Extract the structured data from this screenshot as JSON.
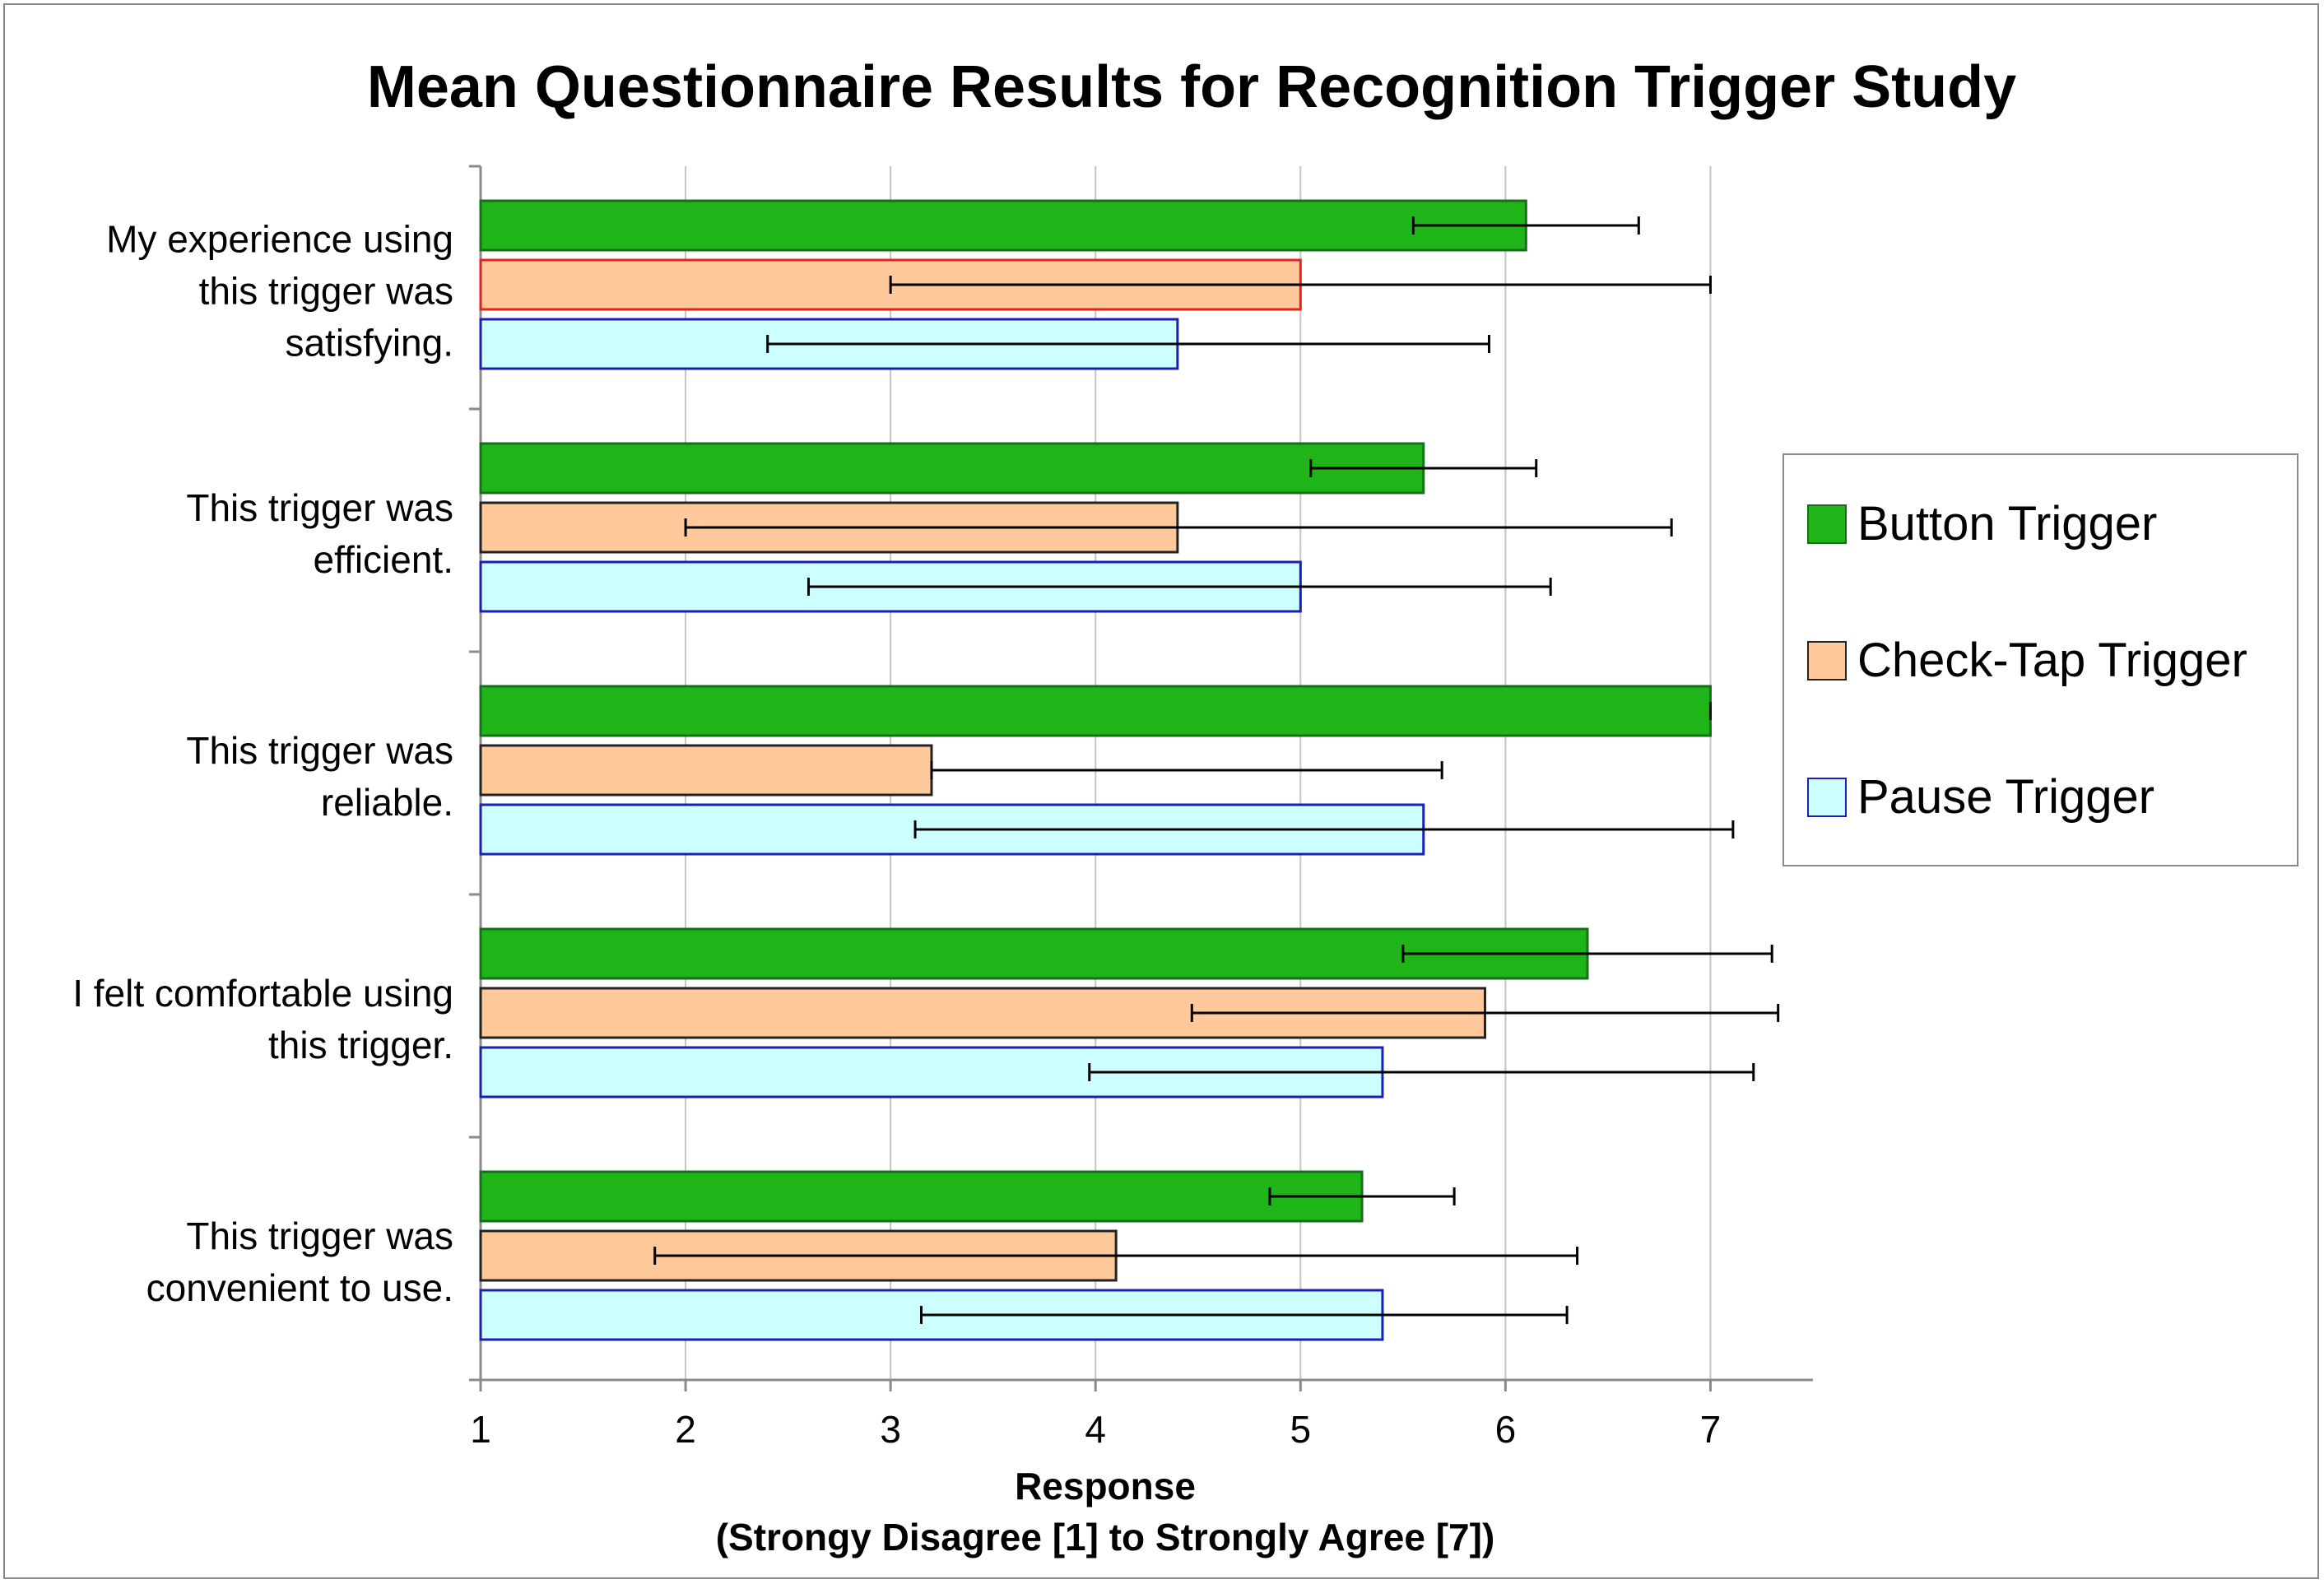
{
  "chart_data": {
    "type": "bar",
    "orientation": "horizontal",
    "title": "Mean Questionnaire Results for Recognition Trigger Study",
    "xlabel": "Response",
    "xlabel_sub": "(Strongy Disagree [1] to Strongly Agree [7])",
    "ylabel": "",
    "xlim": [
      1,
      7.5
    ],
    "xticks": [
      1,
      2,
      3,
      4,
      5,
      6,
      7
    ],
    "grid": "vertical",
    "legend_position": "right",
    "categories": [
      [
        "My experience using",
        "this trigger was",
        "satisfying."
      ],
      [
        "This trigger was",
        "efficient."
      ],
      [
        "This trigger was",
        "reliable."
      ],
      [
        "I felt comfortable using",
        "this trigger."
      ],
      [
        "This trigger was",
        "convenient to use."
      ]
    ],
    "series": [
      {
        "name": "Button Trigger",
        "fill": "#1fb519",
        "stroke": "#16701a",
        "values": [
          6.1,
          5.6,
          7.0,
          6.4,
          5.3
        ],
        "error_low": [
          5.55,
          5.05,
          7.0,
          5.5,
          4.85
        ],
        "error_high": [
          6.65,
          6.15,
          7.0,
          7.3,
          5.75
        ]
      },
      {
        "name": "Check-Tap Trigger",
        "fill": "#ffc99c",
        "stroke": "#222222",
        "values": [
          5.0,
          4.4,
          3.2,
          5.9,
          4.1
        ],
        "error_low": [
          3.0,
          2.0,
          3.2,
          4.47,
          1.85
        ],
        "error_high": [
          7.0,
          6.81,
          5.69,
          7.33,
          6.35
        ]
      },
      {
        "name": "Pause Trigger",
        "fill": "#ccffff",
        "stroke": "#1d1db8",
        "values": [
          4.4,
          5.0,
          5.6,
          5.4,
          5.4
        ],
        "error_low": [
          2.4,
          2.6,
          3.12,
          3.97,
          3.15
        ],
        "error_high": [
          5.92,
          6.22,
          7.11,
          7.21,
          6.3
        ]
      }
    ],
    "highlight": {
      "category_index": 0,
      "series_index": 1,
      "stroke": "#e8211f"
    }
  }
}
